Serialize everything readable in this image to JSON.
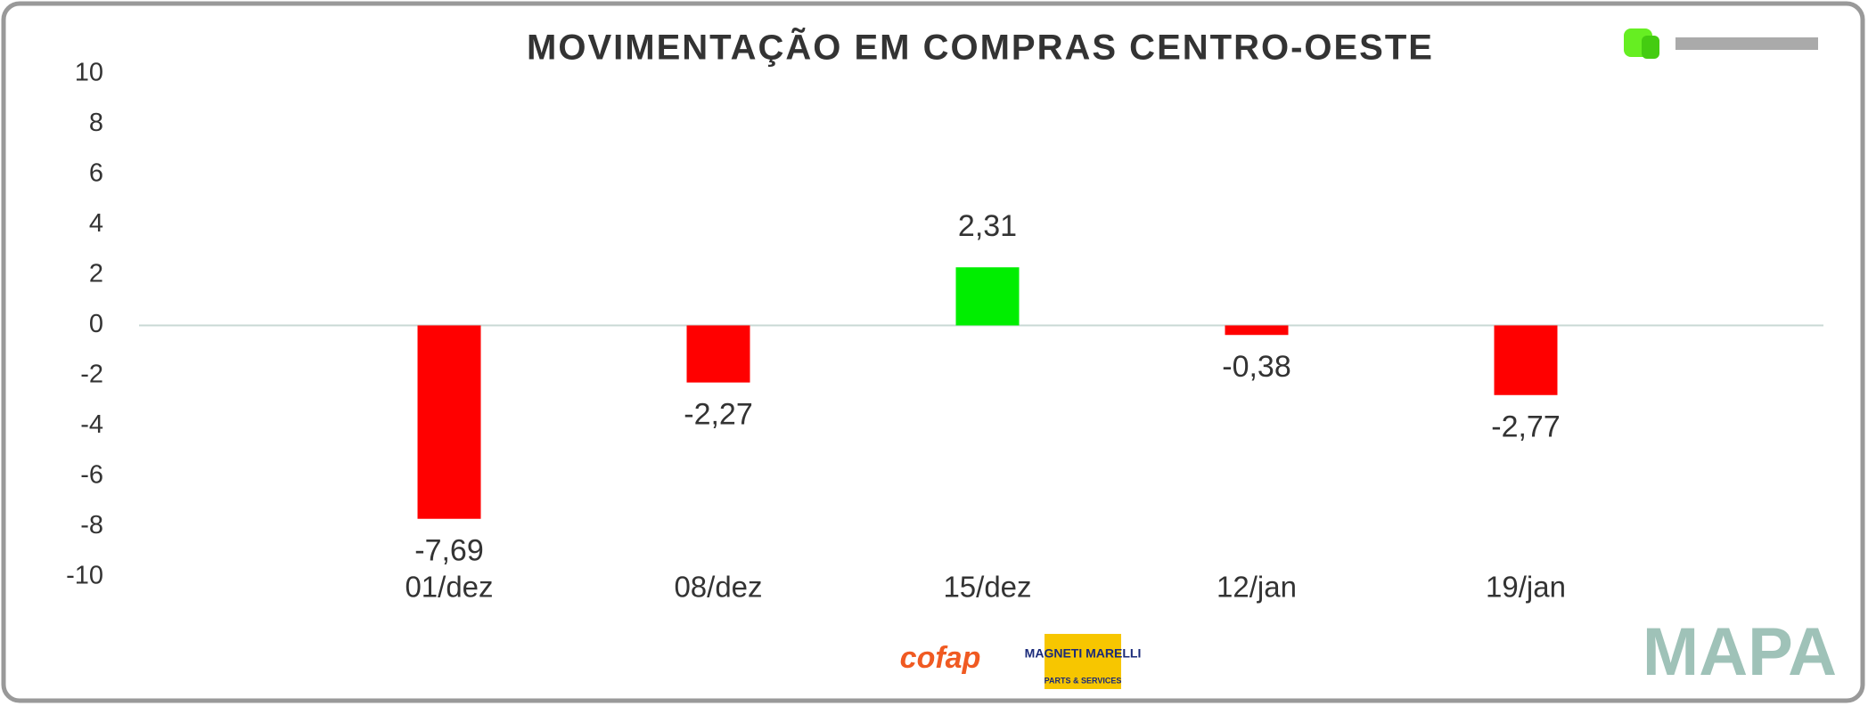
{
  "chart_data": {
    "type": "bar",
    "title": "MOVIMENTAÇÃO EM COMPRAS CENTRO-OESTE",
    "categories": [
      "01/dez",
      "08/dez",
      "15/dez",
      "12/jan",
      "19/jan"
    ],
    "values": [
      -7.69,
      -2.27,
      2.31,
      -0.38,
      -2.77
    ],
    "value_labels": [
      "-7,69",
      "-2,27",
      "2,31",
      "-0,38",
      "-2,77"
    ],
    "colors": [
      "#ff0000",
      "#ff0000",
      "#00ee00",
      "#ff0000",
      "#ff0000"
    ],
    "ylim": [
      -10,
      10
    ],
    "yticks": [
      -10,
      -8,
      -6,
      -4,
      -2,
      0,
      2,
      4,
      6,
      8,
      10
    ],
    "grid": false
  },
  "logos": {
    "cofap": "cofap",
    "magneti": "MAGNETI MARELLI",
    "magneti_sub": "PARTS & SERVICES",
    "mapa": "MAPA"
  }
}
